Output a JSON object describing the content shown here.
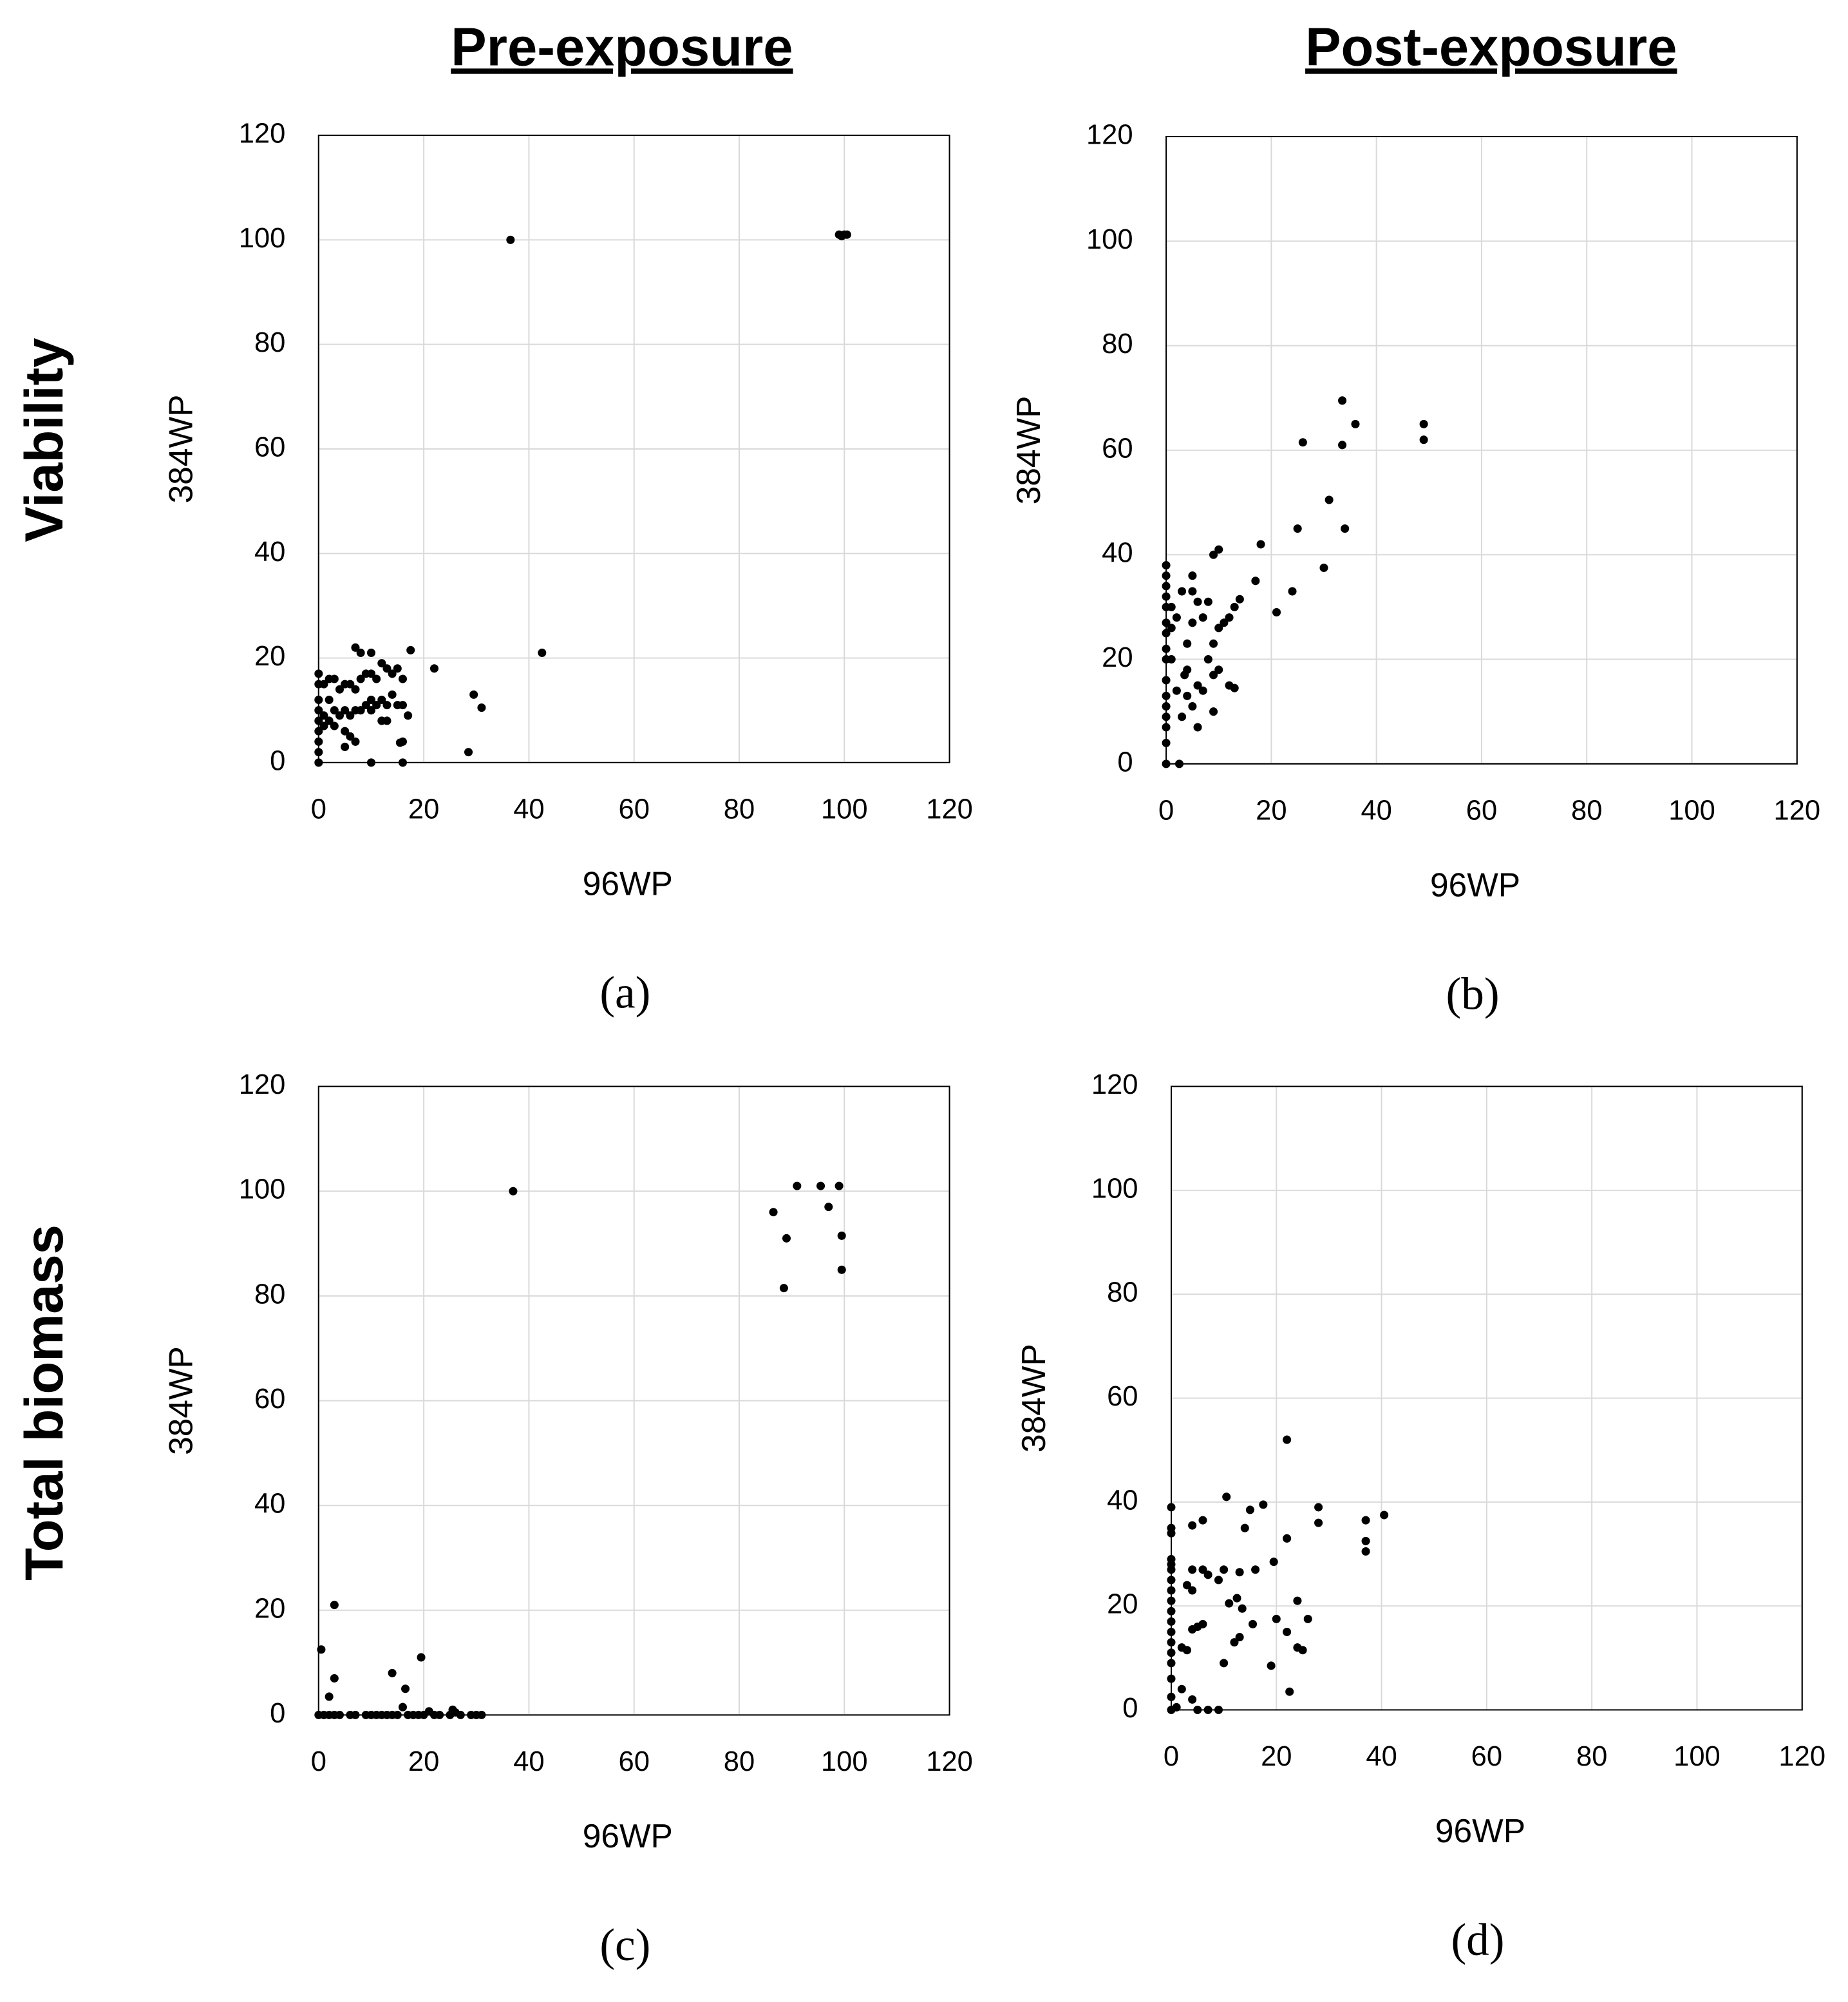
{
  "columns": [
    "Pre-exposure",
    "Post-exposure"
  ],
  "rows": [
    "Viability",
    "Total biomass"
  ],
  "chart_data": [
    {
      "type": "scatter",
      "label": "(a)",
      "xlabel": "96WP",
      "ylabel": "384WP",
      "color": "#000000",
      "grid": true,
      "xlim": [
        0,
        120
      ],
      "ylim": [
        0,
        120
      ],
      "xticks": [
        0,
        20,
        40,
        60,
        80,
        100,
        120
      ],
      "yticks": [
        0,
        20,
        40,
        60,
        80,
        100,
        120
      ],
      "x": [
        36.5,
        99,
        100,
        100.5,
        99.5,
        42.5,
        22,
        17.5,
        29.5,
        31,
        28.5,
        16,
        10,
        0,
        0,
        0,
        0,
        0,
        0,
        0,
        0,
        0,
        1,
        1,
        1,
        2,
        2,
        2,
        3,
        3,
        3,
        4,
        4,
        5,
        5,
        5,
        5,
        6,
        6,
        6,
        7,
        7,
        7,
        7,
        8,
        8,
        8,
        9,
        9,
        10,
        10,
        10,
        10,
        11,
        11,
        12,
        12,
        12,
        13,
        13,
        13,
        14,
        14,
        15,
        15,
        16,
        16,
        16,
        17,
        15.5
      ],
      "values": [
        100,
        101,
        101,
        101,
        100.7,
        21,
        18,
        21.5,
        13,
        10.5,
        2,
        0,
        0,
        0,
        17,
        15,
        12,
        10,
        8,
        6,
        4,
        2,
        15,
        9,
        7,
        16,
        12,
        8,
        16,
        10,
        7,
        14,
        9,
        15,
        10,
        6,
        3,
        15,
        9,
        5,
        22,
        14,
        10,
        4,
        21,
        16,
        10,
        17,
        11,
        21,
        17,
        12,
        10,
        16,
        11,
        19,
        12,
        8,
        18,
        11,
        8,
        17,
        13,
        18,
        11,
        16,
        4,
        11,
        9,
        3.8
      ]
    },
    {
      "type": "scatter",
      "label": "(b)",
      "xlabel": "96WP",
      "ylabel": "384WP",
      "color": "#000000",
      "grid": true,
      "xlim": [
        0,
        120
      ],
      "ylim": [
        0,
        120
      ],
      "xticks": [
        0,
        20,
        40,
        60,
        80,
        100,
        120
      ],
      "yticks": [
        0,
        20,
        40,
        60,
        80,
        100,
        120
      ],
      "x": [
        33.5,
        36,
        49,
        49,
        26,
        33.5,
        31,
        25,
        34,
        18,
        10,
        9,
        30,
        17,
        24,
        21,
        0,
        0,
        0,
        0,
        0,
        0,
        0,
        0,
        0,
        0,
        0,
        0,
        0,
        0,
        0,
        0,
        2.5,
        1,
        1,
        2,
        3,
        4,
        4,
        5,
        5,
        5,
        5,
        6,
        6,
        7,
        7,
        8,
        8,
        9,
        9,
        9,
        10,
        10,
        11,
        12,
        12,
        13,
        13,
        14,
        3,
        4,
        2,
        1,
        6,
        3.5
      ],
      "values": [
        69.5,
        65,
        65,
        62,
        61.5,
        61,
        50.5,
        45,
        45,
        42,
        41,
        40,
        37.5,
        35,
        33,
        29,
        38,
        36,
        34,
        32,
        30,
        27,
        25,
        22,
        20,
        16,
        13,
        11,
        9,
        7,
        4,
        0,
        0,
        30,
        26,
        28,
        33,
        18,
        13,
        36,
        33,
        27,
        11,
        31,
        7,
        28,
        14,
        31,
        20,
        23,
        17,
        10,
        26,
        18,
        27,
        28,
        15,
        30,
        14.5,
        31.5,
        9,
        23,
        14,
        20,
        15,
        17
      ]
    },
    {
      "type": "scatter",
      "label": "(c)",
      "xlabel": "96WP",
      "ylabel": "384WP",
      "color": "#000000",
      "grid": true,
      "xlim": [
        0,
        120
      ],
      "ylim": [
        0,
        120
      ],
      "xticks": [
        0,
        20,
        40,
        60,
        80,
        100,
        120
      ],
      "yticks": [
        0,
        20,
        40,
        60,
        80,
        100,
        120
      ],
      "x": [
        37,
        91,
        95.5,
        99,
        97,
        86.5,
        89,
        99.5,
        88.5,
        99.5,
        3,
        0.5,
        3,
        2,
        14,
        19.5,
        16.5,
        16,
        0,
        1,
        2,
        3,
        4,
        6,
        7,
        9,
        10,
        11,
        12,
        13,
        14,
        15,
        17,
        18,
        19,
        20,
        21,
        22,
        23,
        25,
        25.5,
        26,
        27,
        29,
        30,
        31
      ],
      "values": [
        100,
        101,
        101,
        101,
        97,
        96,
        91,
        91.5,
        81.5,
        85,
        21,
        12.5,
        7,
        3.5,
        8,
        11,
        5,
        1.5,
        0,
        0,
        0,
        0,
        0,
        0,
        0,
        0,
        0,
        0,
        0,
        0,
        0,
        0,
        0,
        0,
        0,
        0,
        0.7,
        0,
        0,
        0,
        1,
        0.5,
        0,
        0,
        0,
        0
      ]
    },
    {
      "type": "scatter",
      "label": "(d)",
      "xlabel": "96WP",
      "ylabel": "384WP",
      "color": "#000000",
      "grid": true,
      "xlim": [
        0,
        120
      ],
      "ylim": [
        0,
        120
      ],
      "xticks": [
        0,
        20,
        40,
        60,
        80,
        100,
        120
      ],
      "yticks": [
        0,
        20,
        40,
        60,
        80,
        100,
        120
      ],
      "x": [
        22,
        10.5,
        17.5,
        28,
        15,
        40.5,
        37,
        28,
        6,
        4,
        14,
        37,
        37,
        22,
        19.5,
        10,
        13,
        16,
        4,
        6,
        7,
        9,
        3,
        4,
        12.5,
        13.5,
        24,
        11,
        20,
        26,
        15.5,
        5,
        6,
        4,
        22,
        13,
        12,
        24,
        25,
        2,
        3,
        10,
        19,
        22.5,
        0,
        0,
        0,
        0,
        0,
        0,
        0,
        0,
        0,
        0,
        0,
        0,
        0,
        0,
        0,
        0,
        0,
        0,
        4,
        5,
        7,
        9,
        1,
        2
      ],
      "values": [
        52,
        41,
        39.5,
        39,
        38.5,
        37.5,
        36.5,
        36,
        36.5,
        35.5,
        35,
        32.5,
        30.5,
        33,
        28.5,
        27,
        26.5,
        27,
        27,
        27,
        26,
        25,
        24,
        23,
        21.5,
        19.5,
        21,
        20.5,
        17.5,
        17.5,
        16.5,
        16,
        16.5,
        15.5,
        15,
        14,
        13,
        12,
        11.5,
        12,
        11.5,
        9,
        8.5,
        3.5,
        39,
        35,
        34,
        29,
        28,
        27,
        25,
        23,
        21,
        19,
        17,
        15,
        13,
        11,
        9,
        6,
        2.5,
        0,
        2,
        0,
        0,
        0,
        0.5,
        4
      ]
    }
  ]
}
